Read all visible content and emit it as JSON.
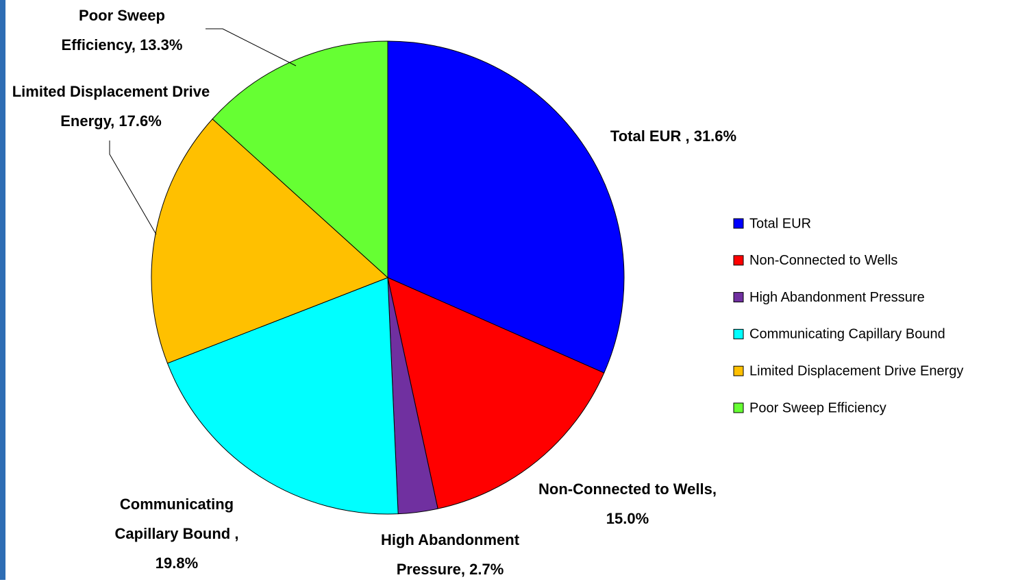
{
  "chart_data": {
    "type": "pie",
    "categories": [
      "Total EUR",
      "Non-Connected to Wells",
      "High Abandonment Pressure",
      "Communicating Capillary Bound",
      "Limited Displacement Drive Energy",
      "Poor Sweep Efficiency"
    ],
    "values": [
      31.6,
      15.0,
      2.7,
      19.8,
      17.6,
      13.3
    ],
    "value_labels": [
      "Total EUR , 31.6%",
      "Non-Connected to Wells, 15.0%",
      "High Abandonment Pressure, 2.7%",
      "Communicating Capillary Bound , 19.8%",
      "Limited Displacement Drive Energy, 17.6%",
      "Poor Sweep Efficiency, 13.3%"
    ],
    "colors": [
      "#0000ff",
      "#ff0000",
      "#7030a0",
      "#00ffff",
      "#ffc000",
      "#66ff33"
    ],
    "legend": "right"
  }
}
